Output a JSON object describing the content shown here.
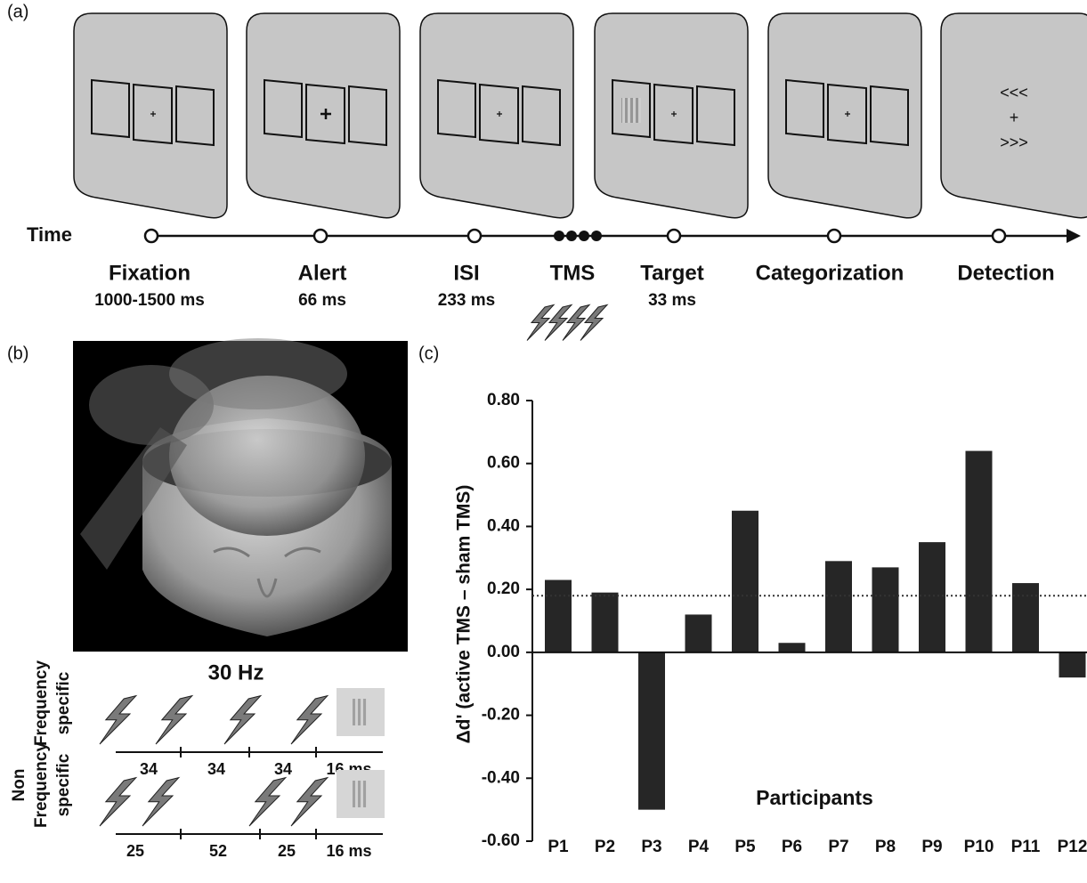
{
  "panel_a": {
    "label": "(a)",
    "time_label": "Time",
    "events": [
      {
        "name": "Fixation",
        "duration": "1000-1500 ms"
      },
      {
        "name": "Alert",
        "duration": "66 ms"
      },
      {
        "name": "ISI",
        "duration": "233 ms"
      },
      {
        "name": "TMS"
      },
      {
        "name": "Target",
        "duration": "33 ms"
      },
      {
        "name": "Categorization"
      },
      {
        "name": "Detection"
      }
    ],
    "detection_cues": [
      "<<<",
      "+",
      ">>>"
    ]
  },
  "panel_b": {
    "label": "(b)",
    "rate": "30 Hz",
    "rows": [
      {
        "name_lines": [
          "Frequency",
          "specific"
        ],
        "intervals": [
          "34",
          "34",
          "34",
          "16 ms"
        ]
      },
      {
        "name_lines": [
          "Non",
          "Frequency",
          "specific"
        ],
        "intervals": [
          "25",
          "52",
          "25",
          "16 ms"
        ]
      }
    ]
  },
  "chart_data": {
    "type": "bar",
    "panel_label": "(c)",
    "ylabel": "Δd' (active TMS – sham TMS)",
    "xlabel": "Participants",
    "categories": [
      "P1",
      "P2",
      "P3",
      "P4",
      "P5",
      "P6",
      "P7",
      "P8",
      "P9",
      "P10",
      "P11",
      "P12"
    ],
    "values": [
      0.23,
      0.19,
      -0.5,
      0.12,
      0.45,
      0.03,
      0.29,
      0.27,
      0.35,
      0.64,
      0.22,
      -0.08
    ],
    "color": "#262626",
    "ylim": [
      -0.6,
      0.8
    ],
    "yticks": [
      {
        "value": -0.6,
        "label": "-0.60"
      },
      {
        "value": -0.4,
        "label": "-0.40"
      },
      {
        "value": -0.2,
        "label": "-0.20"
      },
      {
        "value": 0,
        "label": "0.00"
      },
      {
        "value": 0.2,
        "label": "0.20"
      },
      {
        "value": 0.4,
        "label": "0.40"
      },
      {
        "value": 0.6,
        "label": "0.60"
      },
      {
        "value": 0.8,
        "label": "0.80"
      }
    ],
    "reference_line": 0.18
  }
}
